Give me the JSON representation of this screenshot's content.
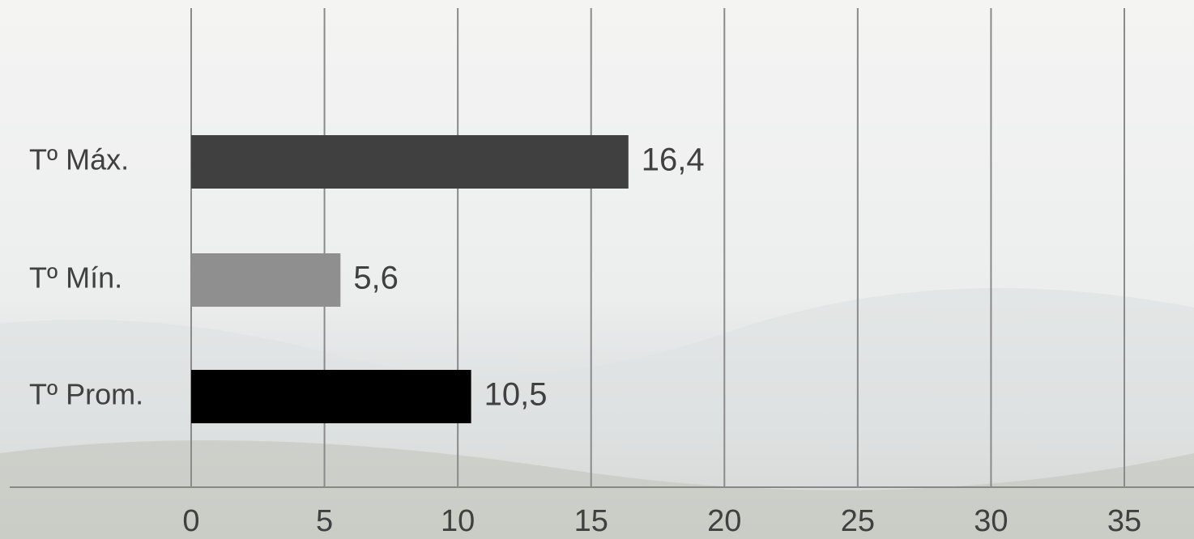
{
  "chart_data": {
    "type": "bar",
    "orientation": "horizontal",
    "categories": [
      "Tº Máx.",
      "Tº Mín.",
      "Tº Prom."
    ],
    "values": [
      16.4,
      5.6,
      10.5
    ],
    "value_labels": [
      "16,4",
      "5,6",
      "10,5"
    ],
    "colors": [
      "#404040",
      "#8f8f8f",
      "#000000"
    ],
    "xlim": [
      0,
      35
    ],
    "xticks": [
      0,
      5,
      10,
      15,
      20,
      25,
      30,
      35
    ],
    "grid": true
  }
}
